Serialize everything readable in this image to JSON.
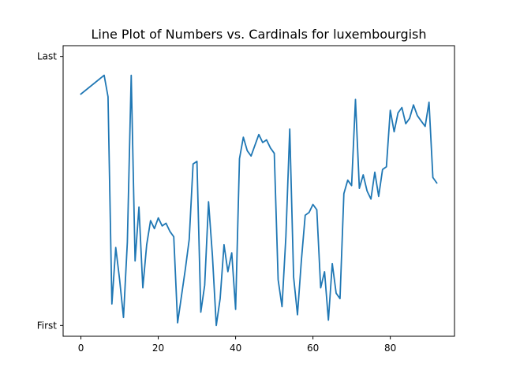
{
  "chart_data": {
    "type": "line",
    "title": "Line Plot of Numbers vs. Cardinals for luxembourgish",
    "xlabel": "",
    "ylabel": "",
    "xlim": [
      -4.6,
      96.6
    ],
    "ylim": [
      -0.04,
      1.04
    ],
    "x_ticks": [
      0,
      20,
      40,
      60,
      80
    ],
    "x_tick_labels": [
      "0",
      "20",
      "40",
      "60",
      "80"
    ],
    "y_ticks": [
      0,
      1
    ],
    "y_tick_labels": [
      "First",
      "Last"
    ],
    "grid": false,
    "legend": "none",
    "series": [
      {
        "color": "#1f77b4",
        "x": [
          0,
          6,
          7,
          8,
          9,
          10,
          11,
          12,
          13,
          14,
          15,
          16,
          17,
          18,
          19,
          20,
          21,
          22,
          23,
          24,
          25,
          26,
          27,
          28,
          29,
          30,
          31,
          32,
          33,
          34,
          35,
          36,
          37,
          38,
          39,
          40,
          41,
          42,
          43,
          44,
          45,
          46,
          47,
          48,
          49,
          50,
          51,
          52,
          53,
          54,
          55,
          56,
          57,
          58,
          59,
          60,
          61,
          62,
          63,
          64,
          65,
          66,
          67,
          68,
          69,
          70,
          71,
          72,
          73,
          74,
          75,
          76,
          77,
          78,
          79,
          80,
          81,
          82,
          83,
          84,
          85,
          86,
          87,
          88,
          89,
          90,
          91,
          92
        ],
        "values": [
          0.86,
          0.93,
          0.85,
          0.08,
          0.29,
          0.17,
          0.03,
          0.31,
          0.93,
          0.24,
          0.44,
          0.14,
          0.3,
          0.39,
          0.36,
          0.4,
          0.37,
          0.38,
          0.35,
          0.33,
          0.01,
          0.11,
          0.21,
          0.32,
          0.6,
          0.61,
          0.05,
          0.15,
          0.46,
          0.26,
          0.0,
          0.1,
          0.3,
          0.2,
          0.27,
          0.06,
          0.62,
          0.7,
          0.65,
          0.63,
          0.67,
          0.71,
          0.68,
          0.69,
          0.66,
          0.64,
          0.17,
          0.07,
          0.33,
          0.73,
          0.18,
          0.04,
          0.24,
          0.41,
          0.42,
          0.45,
          0.43,
          0.14,
          0.2,
          0.02,
          0.23,
          0.12,
          0.1,
          0.49,
          0.54,
          0.52,
          0.84,
          0.51,
          0.56,
          0.5,
          0.47,
          0.57,
          0.48,
          0.58,
          0.59,
          0.8,
          0.72,
          0.79,
          0.81,
          0.75,
          0.77,
          0.82,
          0.78,
          0.76,
          0.74,
          0.83,
          0.55,
          0.53
        ]
      }
    ]
  }
}
